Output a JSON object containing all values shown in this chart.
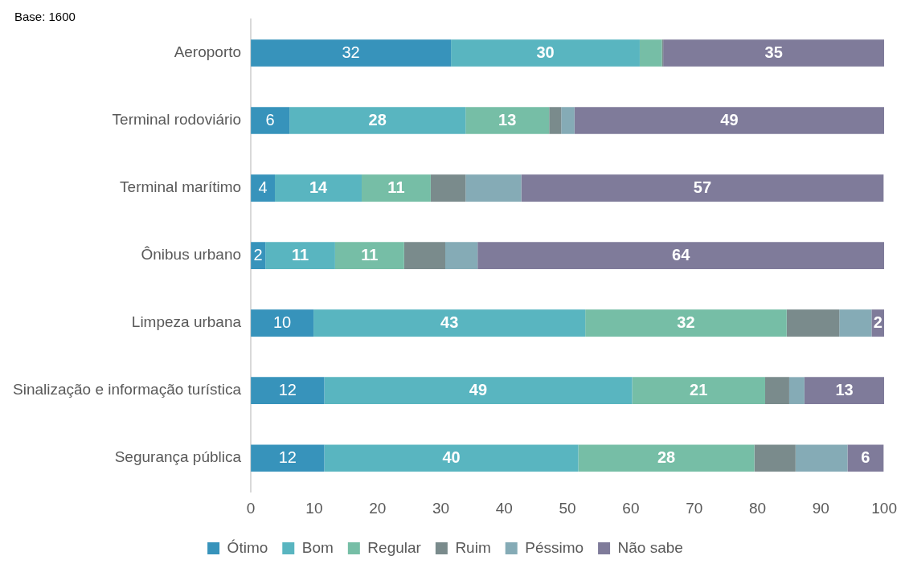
{
  "chart_data": {
    "type": "bar",
    "orientation": "horizontal",
    "stacked": true,
    "annotations": [
      "Base: 1600"
    ],
    "categories": [
      "Aeroporto",
      "Terminal rodoviário",
      "Terminal marítimo",
      "Ônibus urbano",
      "Limpeza urbana",
      "Sinalização e informação turística",
      "Segurança pública"
    ],
    "series": [
      {
        "name": "Ótimo",
        "color": "#3793bb",
        "values": [
          31.6,
          6.1,
          3.8,
          2.3,
          9.9,
          11.6,
          11.6
        ],
        "value_labels": [
          "32",
          "6",
          "4",
          "2",
          "10",
          "12",
          "12"
        ]
      },
      {
        "name": "Bom",
        "color": "#59b5c0",
        "values": [
          29.8,
          27.8,
          13.7,
          11.0,
          42.9,
          48.6,
          40.1
        ],
        "value_labels": [
          "30",
          "28",
          "14",
          "11",
          "43",
          "49",
          "40"
        ]
      },
      {
        "name": "Regular",
        "color": "#76bea6",
        "values": [
          3.5,
          13.2,
          10.9,
          10.9,
          31.8,
          21.0,
          27.8
        ],
        "value_labels": [
          null,
          "13",
          "11",
          "11",
          "32",
          "21",
          "28"
        ]
      },
      {
        "name": "Ruim",
        "color": "#7a8b8c",
        "values": [
          0.2,
          1.9,
          5.5,
          6.5,
          8.3,
          3.8,
          6.5
        ]
      },
      {
        "name": "Péssimo",
        "color": "#85abb6",
        "values": [
          0,
          2.1,
          8.8,
          5.1,
          5.1,
          2.4,
          8.2
        ]
      },
      {
        "name": "Não sabe",
        "color": "#7f7b9a",
        "values": [
          34.9,
          48.9,
          57.2,
          64.2,
          2.0,
          12.6,
          5.7
        ],
        "value_labels": [
          "35",
          "49",
          "57",
          "64",
          "2",
          "13",
          "6"
        ]
      }
    ],
    "xlim": [
      0,
      100
    ],
    "xticks": [
      0,
      10,
      20,
      30,
      40,
      50,
      60,
      70,
      80,
      90,
      100
    ],
    "grid": false,
    "legend": "bottom"
  }
}
